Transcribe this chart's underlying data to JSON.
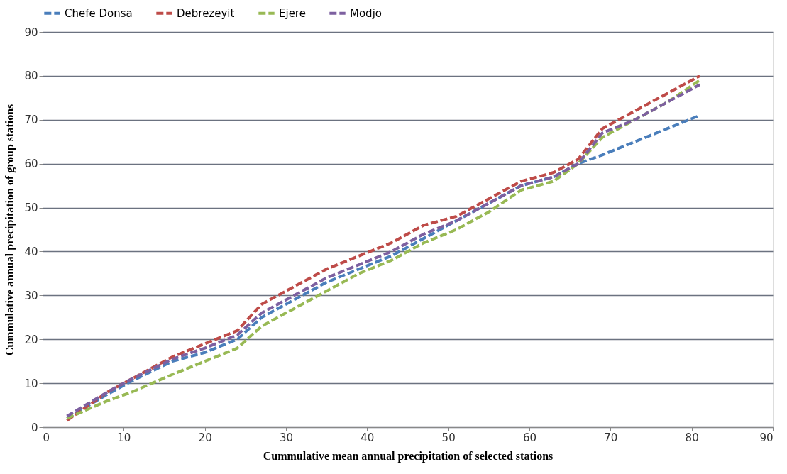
{
  "chart_data": {
    "type": "line",
    "xlabel": "Cummulative mean annual precipitation  of selected stations",
    "ylabel": "Cummulative  annual precipitation of group stations",
    "x": [
      3,
      8,
      11,
      16,
      20,
      24,
      27,
      31,
      35,
      39,
      43,
      47,
      51,
      55,
      59,
      63,
      66,
      69,
      73,
      77,
      81
    ],
    "series": [
      {
        "name": "Chefe Donsa",
        "color": "#4a7ebb",
        "values": [
          2,
          7.5,
          10.5,
          15,
          17,
          20,
          25,
          29,
          33,
          36,
          39,
          43,
          47,
          51,
          55,
          57,
          60,
          62,
          65,
          68,
          71
        ]
      },
      {
        "name": "Debrezeyit",
        "color": "#be4b48",
        "values": [
          1.5,
          8,
          11,
          16,
          19,
          22,
          28,
          32,
          36,
          39,
          42,
          46,
          48,
          52,
          56,
          58,
          61,
          68,
          72,
          76,
          80
        ]
      },
      {
        "name": "Ejere",
        "color": "#98b954",
        "values": [
          2,
          6,
          8,
          12,
          15,
          18,
          23,
          27,
          31,
          35,
          38,
          42,
          45,
          49,
          54,
          56,
          60,
          66,
          70,
          74,
          79
        ]
      },
      {
        "name": "Modjo",
        "color": "#7d60a0",
        "values": [
          2.5,
          8,
          11,
          15.5,
          18,
          21,
          26,
          30,
          34,
          37,
          40,
          44,
          47,
          51,
          55,
          57,
          60,
          67,
          70,
          74,
          78
        ]
      }
    ],
    "xlim": [
      0,
      90
    ],
    "xticks": [
      0,
      10,
      20,
      30,
      40,
      50,
      60,
      70,
      80,
      90
    ],
    "ylim": [
      0,
      90
    ],
    "yticks": [
      0,
      10,
      20,
      30,
      40,
      50,
      60,
      70,
      80,
      90
    ],
    "grid": "y",
    "legend": "top",
    "line_style": "dashed",
    "marker": "none"
  }
}
